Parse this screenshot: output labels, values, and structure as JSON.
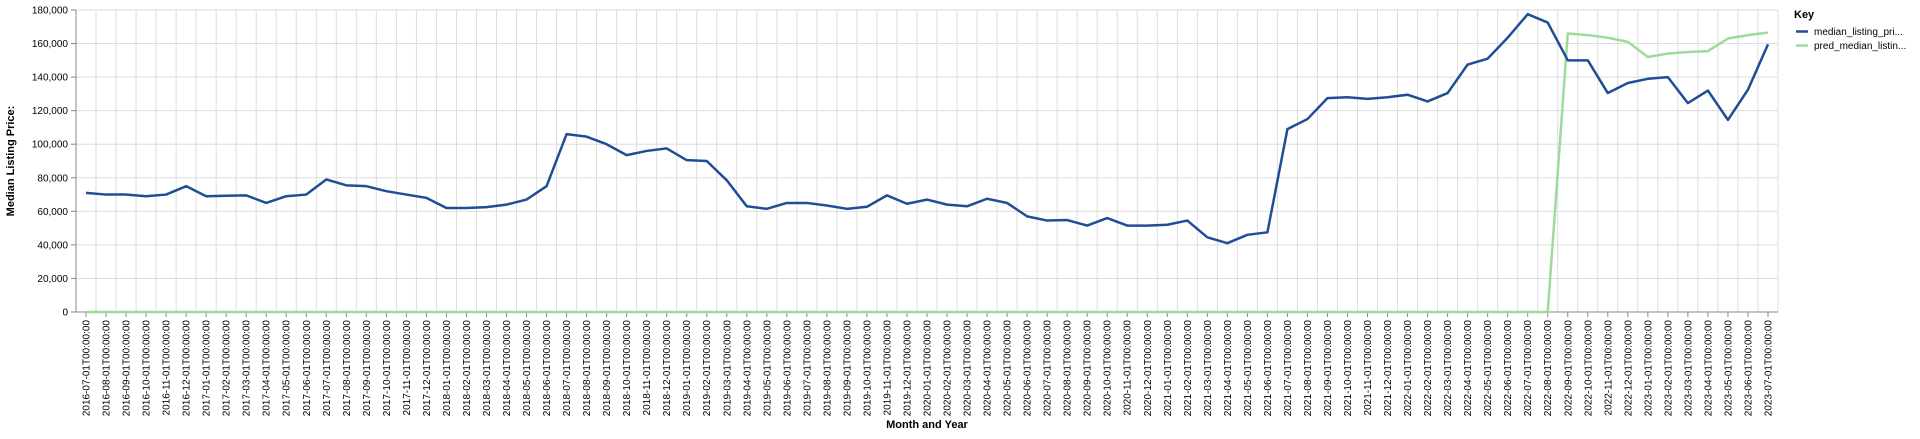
{
  "chart_data": {
    "type": "line",
    "xlabel": "Month and Year",
    "ylabel": "Median Listing Price:",
    "ylim": [
      0,
      180000
    ],
    "yticks": [
      0,
      20000,
      40000,
      60000,
      80000,
      100000,
      120000,
      140000,
      160000,
      180000
    ],
    "ytick_labels": [
      "0",
      "20,000",
      "40,000",
      "60,000",
      "80,000",
      "100,000",
      "120,000",
      "140,000",
      "160,000",
      "180,000"
    ],
    "grid": true,
    "legend": {
      "title": "Key",
      "placement": "top-right"
    },
    "x": [
      "2016-07-01T00:00:00",
      "2016-08-01T00:00:00",
      "2016-09-01T00:00:00",
      "2016-10-01T00:00:00",
      "2016-11-01T00:00:00",
      "2016-12-01T00:00:00",
      "2017-01-01T00:00:00",
      "2017-02-01T00:00:00",
      "2017-03-01T00:00:00",
      "2017-04-01T00:00:00",
      "2017-05-01T00:00:00",
      "2017-06-01T00:00:00",
      "2017-07-01T00:00:00",
      "2017-08-01T00:00:00",
      "2017-09-01T00:00:00",
      "2017-10-01T00:00:00",
      "2017-11-01T00:00:00",
      "2017-12-01T00:00:00",
      "2018-01-01T00:00:00",
      "2018-02-01T00:00:00",
      "2018-03-01T00:00:00",
      "2018-04-01T00:00:00",
      "2018-05-01T00:00:00",
      "2018-06-01T00:00:00",
      "2018-07-01T00:00:00",
      "2018-08-01T00:00:00",
      "2018-09-01T00:00:00",
      "2018-10-01T00:00:00",
      "2018-11-01T00:00:00",
      "2018-12-01T00:00:00",
      "2019-01-01T00:00:00",
      "2019-02-01T00:00:00",
      "2019-03-01T00:00:00",
      "2019-04-01T00:00:00",
      "2019-05-01T00:00:00",
      "2019-06-01T00:00:00",
      "2019-07-01T00:00:00",
      "2019-08-01T00:00:00",
      "2019-09-01T00:00:00",
      "2019-10-01T00:00:00",
      "2019-11-01T00:00:00",
      "2019-12-01T00:00:00",
      "2020-01-01T00:00:00",
      "2020-02-01T00:00:00",
      "2020-03-01T00:00:00",
      "2020-04-01T00:00:00",
      "2020-05-01T00:00:00",
      "2020-06-01T00:00:00",
      "2020-07-01T00:00:00",
      "2020-08-01T00:00:00",
      "2020-09-01T00:00:00",
      "2020-10-01T00:00:00",
      "2020-11-01T00:00:00",
      "2020-12-01T00:00:00",
      "2021-01-01T00:00:00",
      "2021-02-01T00:00:00",
      "2021-03-01T00:00:00",
      "2021-04-01T00:00:00",
      "2021-05-01T00:00:00",
      "2021-06-01T00:00:00",
      "2021-07-01T00:00:00",
      "2021-08-01T00:00:00",
      "2021-09-01T00:00:00",
      "2021-10-01T00:00:00",
      "2021-11-01T00:00:00",
      "2021-12-01T00:00:00",
      "2022-01-01T00:00:00",
      "2022-02-01T00:00:00",
      "2022-03-01T00:00:00",
      "2022-04-01T00:00:00",
      "2022-05-01T00:00:00",
      "2022-06-01T00:00:00",
      "2022-07-01T00:00:00",
      "2022-08-01T00:00:00",
      "2022-09-01T00:00:00",
      "2022-10-01T00:00:00",
      "2022-11-01T00:00:00",
      "2022-12-01T00:00:00",
      "2023-01-01T00:00:00",
      "2023-02-01T00:00:00",
      "2023-03-01T00:00:00",
      "2023-04-01T00:00:00",
      "2023-05-01T00:00:00",
      "2023-06-01T00:00:00",
      "2023-07-01T00:00:00"
    ],
    "series": [
      {
        "name": "median_listing_pri...",
        "color": "#1f4e96",
        "values": [
          71000,
          70000,
          70000,
          69000,
          70000,
          75000,
          69000,
          69250,
          69500,
          65000,
          69000,
          70000,
          79000,
          75500,
          75000,
          72000,
          70000,
          68000,
          62000,
          62000,
          62500,
          64000,
          67000,
          75000,
          106000,
          104500,
          100000,
          93500,
          96000,
          97500,
          90500,
          90000,
          78500,
          63000,
          61500,
          65000,
          65000,
          63500,
          61500,
          62700,
          69500,
          64500,
          67000,
          64000,
          63000,
          67500,
          65000,
          57000,
          54500,
          54800,
          51500,
          56000,
          51500,
          51500,
          52000,
          54500,
          44500,
          41000,
          46000,
          47500,
          109000,
          115000,
          127500,
          128000,
          127000,
          128000,
          129500,
          125500,
          130500,
          147500,
          151000,
          163500,
          177500,
          172500,
          150000,
          150000,
          130500,
          136500,
          139000,
          140000,
          124500,
          132000,
          114500,
          132500,
          159500
        ]
      },
      {
        "name": "pred_median_listin...",
        "color": "#a1d99b",
        "values": [
          0,
          0,
          0,
          0,
          0,
          0,
          0,
          0,
          0,
          0,
          0,
          0,
          0,
          0,
          0,
          0,
          0,
          0,
          0,
          0,
          0,
          0,
          0,
          0,
          0,
          0,
          0,
          0,
          0,
          0,
          0,
          0,
          0,
          0,
          0,
          0,
          0,
          0,
          0,
          0,
          0,
          0,
          0,
          0,
          0,
          0,
          0,
          0,
          0,
          0,
          0,
          0,
          0,
          0,
          0,
          0,
          0,
          0,
          0,
          0,
          0,
          0,
          0,
          0,
          0,
          0,
          0,
          0,
          0,
          0,
          0,
          0,
          0,
          0,
          166000,
          165000,
          163500,
          161000,
          152000,
          154000,
          155000,
          155500,
          163000,
          165000,
          166500
        ]
      }
    ]
  }
}
